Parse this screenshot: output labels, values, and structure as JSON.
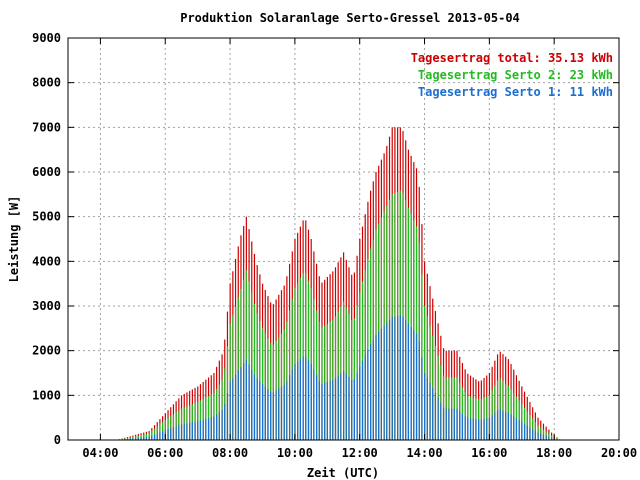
{
  "chart_data": {
    "type": "bar",
    "title": "Produktion Solaranlage Serto-Gressel 2013-05-04",
    "xlabel": "Zeit (UTC)",
    "ylabel": "Leistung [W]",
    "xlim_hours": [
      3,
      20
    ],
    "ylim": [
      0,
      9000
    ],
    "grid": true,
    "legend_position": "top-right",
    "x_ticks": [
      {
        "value": 4,
        "label": "04:00"
      },
      {
        "value": 6,
        "label": "06:00"
      },
      {
        "value": 8,
        "label": "08:00"
      },
      {
        "value": 10,
        "label": "10:00"
      },
      {
        "value": 12,
        "label": "12:00"
      },
      {
        "value": 14,
        "label": "14:00"
      },
      {
        "value": 16,
        "label": "16:00"
      },
      {
        "value": 18,
        "label": "18:00"
      },
      {
        "value": 20,
        "label": "20:00"
      }
    ],
    "y_ticks": [
      {
        "value": 0,
        "label": "0"
      },
      {
        "value": 1000,
        "label": "1000"
      },
      {
        "value": 2000,
        "label": "2000"
      },
      {
        "value": 3000,
        "label": "3000"
      },
      {
        "value": 4000,
        "label": "4000"
      },
      {
        "value": 5000,
        "label": "5000"
      },
      {
        "value": 6000,
        "label": "6000"
      },
      {
        "value": 7000,
        "label": "7000"
      },
      {
        "value": 8000,
        "label": "8000"
      },
      {
        "value": 9000,
        "label": "9000"
      }
    ],
    "legend": [
      {
        "text": "Tagesertrag total: 35.13 kWh",
        "color": "#cc0000"
      },
      {
        "text": "Tagesertrag Serto 2: 23 kWh",
        "color": "#22bb22"
      },
      {
        "text": "Tagesertrag Serto 1: 11 kWh",
        "color": "#1a6fd0"
      }
    ],
    "series": [
      {
        "name": "Tagesertrag total: 35.13 kWh",
        "color": "#cc0000"
      },
      {
        "name": "Tagesertrag Serto 2: 23 kWh",
        "color": "#22bb22"
      },
      {
        "name": "Tagesertrag Serto 1: 11 kWh",
        "color": "#1a6fd0"
      }
    ],
    "keypoints_hours": [
      4.5,
      5.5,
      6.0,
      6.5,
      7.0,
      7.5,
      7.8,
      8.0,
      8.3,
      8.5,
      8.8,
      9.0,
      9.3,
      9.7,
      10.0,
      10.3,
      10.5,
      10.8,
      11.2,
      11.5,
      11.8,
      12.0,
      12.3,
      12.5,
      12.8,
      13.0,
      13.3,
      13.5,
      13.8,
      14.0,
      14.3,
      14.6,
      15.0,
      15.3,
      15.7,
      16.0,
      16.3,
      16.6,
      17.0,
      17.5,
      18.0,
      18.2
    ],
    "keypoints_total": [
      0,
      200,
      600,
      1000,
      1200,
      1500,
      2000,
      3500,
      4500,
      5000,
      4000,
      3500,
      3000,
      3500,
      4500,
      5000,
      4500,
      3500,
      3800,
      4200,
      3600,
      4500,
      5500,
      6000,
      6500,
      7000,
      7000,
      6500,
      6000,
      4000,
      3000,
      2000,
      2000,
      1500,
      1300,
      1500,
      2000,
      1800,
      1200,
      500,
      100,
      0
    ],
    "keypoints_serto2": [
      0,
      150,
      450,
      700,
      850,
      1050,
      1400,
      2600,
      3300,
      3800,
      2900,
      2500,
      2100,
      2500,
      3400,
      3800,
      3400,
      2500,
      2700,
      3100,
      2600,
      3300,
      4200,
      4700,
      5200,
      5500,
      5600,
      5200,
      4700,
      3000,
      2200,
      1400,
      1400,
      1000,
      900,
      1000,
      1400,
      1200,
      800,
      320,
      60,
      0
    ],
    "keypoints_serto1": [
      0,
      70,
      220,
      350,
      420,
      520,
      700,
      1300,
      1600,
      1800,
      1400,
      1250,
      1050,
      1250,
      1700,
      1900,
      1700,
      1250,
      1350,
      1550,
      1300,
      1650,
      2100,
      2350,
      2600,
      2750,
      2800,
      2600,
      2350,
      1500,
      1100,
      700,
      700,
      500,
      450,
      500,
      700,
      600,
      400,
      160,
      30,
      0
    ]
  }
}
